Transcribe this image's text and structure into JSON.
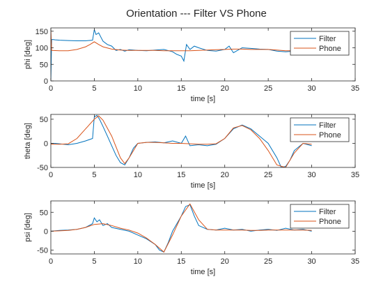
{
  "figure_title": "Orientation --- Filter VS Phone",
  "colors": {
    "filter": "#0072BD",
    "phone": "#D95319",
    "axes": "#262626"
  },
  "chart_data": [
    {
      "type": "line",
      "ylabel": "phi [deg]",
      "xlabel": "time [s]",
      "xlim": [
        0,
        35
      ],
      "ylim": [
        0,
        160
      ],
      "xticks": [
        0,
        5,
        10,
        15,
        20,
        25,
        30,
        35
      ],
      "yticks": [
        0,
        50,
        100,
        150
      ],
      "legend": "top-right",
      "series": [
        {
          "name": "Filter",
          "x": [
            0,
            0.1,
            0.2,
            0.5,
            1,
            2,
            3,
            4,
            4.8,
            5,
            5.2,
            5.5,
            5.8,
            6,
            6.5,
            7,
            7.5,
            8,
            8.5,
            9,
            10,
            11,
            12,
            13,
            14,
            14.5,
            15,
            15.3,
            15.6,
            16,
            16.5,
            17,
            18,
            19,
            20,
            20.5,
            21,
            22,
            23,
            24,
            25,
            26,
            27,
            28,
            29,
            30
          ],
          "y": [
            0,
            125,
            125,
            124,
            123,
            122,
            121,
            121,
            123,
            155,
            140,
            145,
            130,
            120,
            110,
            105,
            92,
            95,
            90,
            94,
            92,
            91,
            93,
            95,
            88,
            80,
            75,
            60,
            110,
            95,
            105,
            100,
            92,
            90,
            95,
            105,
            85,
            100,
            98,
            96,
            95,
            90,
            88,
            90,
            88,
            88
          ]
        },
        {
          "name": "Phone",
          "x": [
            0,
            0.1,
            1,
            2,
            3,
            4,
            4.5,
            5,
            5.5,
            6,
            7,
            8,
            9,
            10,
            11,
            12,
            13,
            14,
            15,
            16,
            17,
            18,
            19,
            20,
            21,
            22,
            23,
            24,
            25,
            26,
            27,
            28,
            29,
            30
          ],
          "y": [
            155,
            92,
            91,
            91,
            95,
            103,
            110,
            118,
            110,
            103,
            96,
            93,
            92,
            92,
            92,
            92,
            91,
            91,
            91,
            91,
            92,
            93,
            94,
            95,
            96,
            96,
            95,
            95,
            95,
            93,
            91,
            91,
            91,
            91
          ]
        }
      ]
    },
    {
      "type": "line",
      "ylabel": "theta [deg]",
      "xlabel": "time [s]",
      "xlim": [
        0,
        35
      ],
      "ylim": [
        -50,
        60
      ],
      "xticks": [
        0,
        5,
        10,
        15,
        20,
        25,
        30,
        35
      ],
      "yticks": [
        -50,
        0,
        50
      ],
      "legend": "top-right",
      "series": [
        {
          "name": "Filter",
          "x": [
            0,
            0.5,
            1,
            2,
            3,
            4,
            4.8,
            5,
            5.3,
            5.6,
            6,
            6.5,
            7,
            7.5,
            8,
            8.5,
            9,
            9.5,
            10,
            11,
            12,
            13,
            14,
            15,
            15.5,
            16,
            17,
            18,
            19,
            20,
            21,
            22,
            23,
            24,
            25,
            26,
            26.5,
            27,
            27.5,
            28,
            29,
            30
          ],
          "y": [
            0,
            0,
            -1,
            -3,
            0,
            5,
            10,
            55,
            58,
            50,
            35,
            15,
            -5,
            -25,
            -40,
            -45,
            -30,
            -10,
            0,
            2,
            3,
            1,
            5,
            0,
            15,
            -5,
            -3,
            -5,
            -2,
            10,
            30,
            38,
            30,
            15,
            0,
            -30,
            -50,
            -48,
            -35,
            -15,
            0,
            -5
          ]
        },
        {
          "name": "Phone",
          "x": [
            0,
            1,
            2,
            3,
            4,
            5,
            5.5,
            6,
            7,
            8,
            8.5,
            9,
            10,
            11,
            12,
            13,
            14,
            15,
            16,
            17,
            18,
            19,
            20,
            21,
            22,
            23,
            24,
            25,
            26,
            27,
            28,
            29,
            30
          ],
          "y": [
            -2,
            -2,
            -1,
            10,
            30,
            50,
            57,
            48,
            15,
            -30,
            -42,
            -30,
            0,
            2,
            2,
            1,
            0,
            0,
            -1,
            -2,
            -2,
            -1,
            10,
            32,
            37,
            28,
            10,
            -15,
            -45,
            -50,
            -20,
            0,
            -2
          ]
        }
      ]
    },
    {
      "type": "line",
      "ylabel": "psi [deg]",
      "xlabel": "time [s]",
      "xlim": [
        0,
        35
      ],
      "ylim": [
        -60,
        80
      ],
      "xticks": [
        0,
        5,
        10,
        15,
        20,
        25,
        30,
        35
      ],
      "yticks": [
        -50,
        0,
        50
      ],
      "legend": "top-right",
      "series": [
        {
          "name": "Filter",
          "x": [
            0,
            1,
            2,
            3,
            4,
            4.8,
            5,
            5.3,
            5.6,
            6,
            6.5,
            7,
            8,
            9,
            10,
            11,
            12,
            12.5,
            13,
            13.5,
            14,
            15,
            15.5,
            16,
            16.5,
            17,
            18,
            19,
            20,
            21,
            22,
            23,
            24,
            25,
            26,
            27,
            28,
            29,
            30
          ],
          "y": [
            0,
            2,
            3,
            5,
            10,
            20,
            35,
            25,
            30,
            15,
            20,
            10,
            5,
            0,
            -10,
            -20,
            -35,
            -50,
            -55,
            -30,
            0,
            40,
            65,
            70,
            40,
            15,
            5,
            3,
            8,
            3,
            5,
            0,
            3,
            5,
            2,
            8,
            3,
            5,
            0
          ]
        },
        {
          "name": "Phone",
          "x": [
            0,
            1,
            2,
            3,
            4,
            5,
            6,
            7,
            8,
            9,
            10,
            11,
            12,
            13,
            14,
            15,
            16,
            17,
            18,
            19,
            20,
            21,
            22,
            23,
            24,
            25,
            26,
            27,
            28,
            29,
            30
          ],
          "y": [
            0,
            1,
            2,
            5,
            10,
            18,
            20,
            15,
            8,
            3,
            -5,
            -18,
            -35,
            -55,
            -10,
            40,
            72,
            30,
            5,
            3,
            3,
            3,
            3,
            2,
            2,
            3,
            3,
            3,
            3,
            3,
            2
          ]
        }
      ]
    }
  ]
}
